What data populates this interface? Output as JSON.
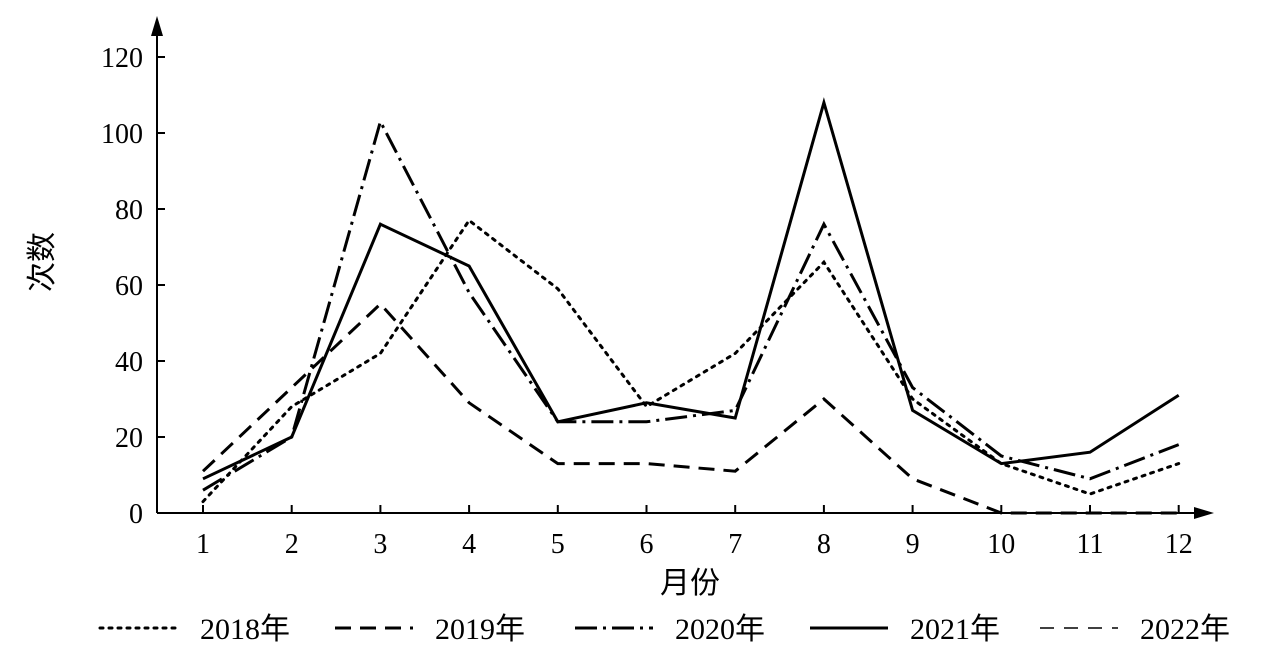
{
  "chart_data": {
    "type": "line",
    "title": "",
    "xlabel": "月份",
    "ylabel": "次数",
    "categories": [
      "1",
      "2",
      "3",
      "4",
      "5",
      "6",
      "7",
      "8",
      "9",
      "10",
      "11",
      "12"
    ],
    "ylim": [
      0,
      120
    ],
    "yticks": [
      0,
      20,
      40,
      60,
      80,
      100,
      120
    ],
    "grid": false,
    "legend_position": "bottom",
    "series": [
      {
        "name": "2018年",
        "style": "dotted",
        "color": "#000000",
        "values": [
          3,
          28,
          42,
          77,
          59,
          28,
          42,
          66,
          30,
          13,
          5,
          13
        ]
      },
      {
        "name": "2019年",
        "style": "dashed",
        "color": "#000000",
        "values": [
          11,
          33,
          55,
          29,
          13,
          13,
          11,
          30,
          9,
          0,
          0,
          0
        ]
      },
      {
        "name": "2020年",
        "style": "dash-dot",
        "color": "#000000",
        "values": [
          6,
          20,
          103,
          58,
          24,
          24,
          27,
          76,
          33,
          15,
          9,
          18
        ]
      },
      {
        "name": "2021年",
        "style": "solid",
        "color": "#000000",
        "values": [
          9,
          20,
          76,
          65,
          24,
          29,
          25,
          108,
          27,
          13,
          16,
          31
        ]
      },
      {
        "name": "2022年",
        "style": "fine-dashed",
        "color": "#000000",
        "values": [
          0,
          0,
          0,
          0,
          0,
          0,
          0,
          0,
          0,
          0,
          0,
          0
        ]
      }
    ]
  }
}
